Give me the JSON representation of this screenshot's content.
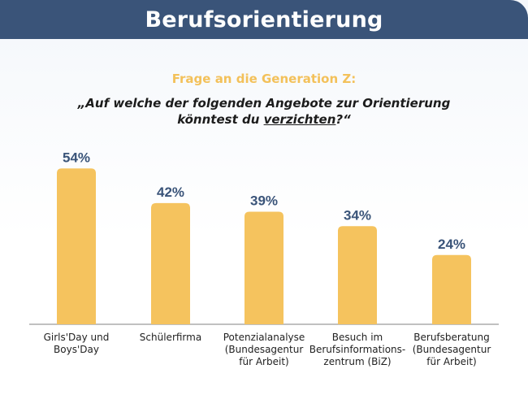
{
  "header": {
    "title": "Berufsorientierung"
  },
  "survey": {
    "subtitle": "Frage an die Generation Z:",
    "question_line1": "„Auf welche der folgenden Angebote zur Orientierung",
    "question_line2_prefix": "könntest du ",
    "question_line2_emphasis": "verzichten",
    "question_line2_suffix": "?“"
  },
  "chart_data": {
    "type": "bar",
    "categories": [
      [
        "Girls'Day und",
        "Boys'Day"
      ],
      [
        "Schülerfirma"
      ],
      [
        "Potenzialanalyse",
        "(Bundesagentur",
        "für Arbeit)"
      ],
      [
        "Besuch im",
        "Berufsinformations-",
        "zentrum (BiZ)"
      ],
      [
        "Berufsberatung",
        "(Bundesagentur",
        "für Arbeit)"
      ]
    ],
    "values": [
      54,
      42,
      39,
      34,
      24
    ],
    "value_labels": [
      "54%",
      "42%",
      "39%",
      "34%",
      "24%"
    ],
    "unit": "%",
    "ylim": [
      0,
      60
    ],
    "grid": false,
    "bar_color": "#f5c35e",
    "value_label_color": "#3a5479",
    "axis_color": "#9a9a9a"
  }
}
